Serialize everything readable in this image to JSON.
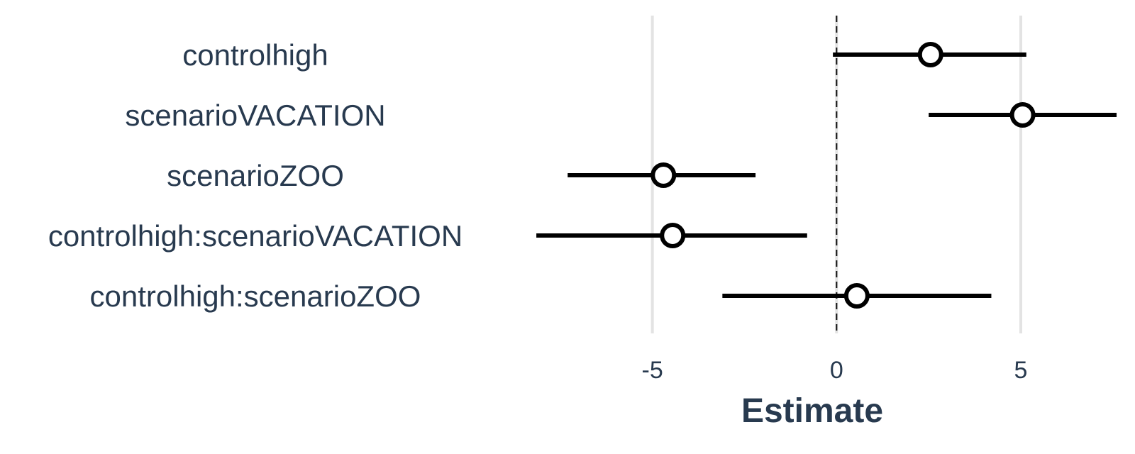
{
  "chart_data": {
    "type": "forest",
    "xlabel": "Estimate",
    "xlim": [
      -10,
      8.1
    ],
    "xticks": [
      -5,
      0,
      5
    ],
    "xtick_labels": [
      "-5",
      "0",
      "5"
    ],
    "reference_line": 0,
    "grid": "vertical at ticks",
    "series": [
      {
        "values": [
          {
            "term": "controlhigh",
            "estimate": 2.55,
            "ci_low": -0.1,
            "ci_high": 5.15
          },
          {
            "term": "scenarioVACATION",
            "estimate": 5.05,
            "ci_low": 2.5,
            "ci_high": 7.6
          },
          {
            "term": "scenarioZOO",
            "estimate": -4.7,
            "ci_low": -7.3,
            "ci_high": -2.2
          },
          {
            "term": "controlhigh:scenarioVACATION",
            "estimate": -4.45,
            "ci_low": -8.15,
            "ci_high": -0.8
          },
          {
            "term": "controlhigh:scenarioZOO",
            "estimate": 0.55,
            "ci_low": -3.1,
            "ci_high": 4.2
          }
        ]
      }
    ]
  }
}
